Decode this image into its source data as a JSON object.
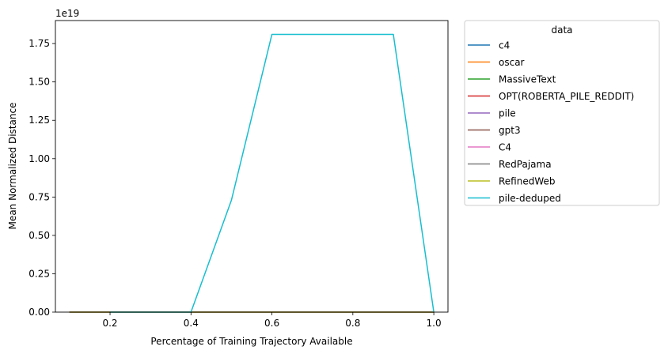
{
  "chart_data": {
    "type": "line",
    "title": "",
    "xlabel": "Percentage of Training Trajectory Available",
    "ylabel": "Mean Normalized Distance",
    "y_scale_label": "1e19",
    "xlim": [
      0.065,
      1.035
    ],
    "ylim": [
      0,
      1.9
    ],
    "x_ticks": [
      0.2,
      0.4,
      0.6,
      0.8,
      1.0
    ],
    "x_tick_labels": [
      "0.2",
      "0.4",
      "0.6",
      "0.8",
      "1.0"
    ],
    "y_ticks": [
      0,
      0.25,
      0.5,
      0.75,
      1.0,
      1.25,
      1.5,
      1.75
    ],
    "y_tick_labels": [
      "0.00",
      "0.25",
      "0.50",
      "0.75",
      "1.00",
      "1.25",
      "1.50",
      "1.75"
    ],
    "grid": false,
    "legend": {
      "title": "data",
      "placement": "outside-right"
    },
    "series": [
      {
        "name": "c4",
        "color": "#1f77b4",
        "x": [
          0.1,
          0.2,
          0.4,
          0.5,
          0.6,
          0.9,
          1.0
        ],
        "y": [
          0,
          0,
          0,
          0,
          0,
          0,
          0
        ]
      },
      {
        "name": "oscar",
        "color": "#ff7f0e",
        "x": [
          0.1,
          0.2,
          0.4,
          0.5,
          0.6,
          0.9,
          1.0
        ],
        "y": [
          0,
          0,
          0,
          0,
          0,
          0,
          0
        ]
      },
      {
        "name": "MassiveText",
        "color": "#2ca02c",
        "x": [
          0.1,
          0.2,
          0.4,
          0.5,
          0.6,
          0.9,
          1.0
        ],
        "y": [
          0,
          0,
          0,
          0,
          0,
          0,
          0
        ]
      },
      {
        "name": "OPT(ROBERTA_PILE_REDDIT)",
        "color": "#d62728",
        "x": [
          0.1,
          0.2,
          0.4,
          0.5,
          0.6,
          0.9,
          1.0
        ],
        "y": [
          0,
          0,
          0,
          0,
          0,
          0,
          0
        ]
      },
      {
        "name": "pile",
        "color": "#9467bd",
        "x": [
          0.1,
          0.2,
          0.4,
          0.5,
          0.6,
          0.9,
          1.0
        ],
        "y": [
          0,
          0,
          0,
          0,
          0,
          0,
          0
        ]
      },
      {
        "name": "gpt3",
        "color": "#8c564b",
        "x": [
          0.1,
          0.2,
          0.4,
          0.5,
          0.6,
          0.9,
          1.0
        ],
        "y": [
          0,
          0,
          0,
          0,
          0,
          0,
          0
        ]
      },
      {
        "name": "C4",
        "color": "#e377c2",
        "x": [
          0.1,
          0.2,
          0.4,
          0.5,
          0.6,
          0.9,
          1.0
        ],
        "y": [
          0,
          0,
          0,
          0,
          0,
          0,
          0
        ]
      },
      {
        "name": "RedPajama",
        "color": "#7f7f7f",
        "x": [
          0.1,
          0.2,
          0.4,
          0.5,
          0.6,
          0.9,
          1.0
        ],
        "y": [
          0,
          0,
          0,
          0,
          0,
          0,
          0
        ]
      },
      {
        "name": "RefinedWeb",
        "color": "#bcbd22",
        "x": [
          0.1,
          0.2,
          0.4,
          0.5,
          0.6,
          0.9,
          1.0
        ],
        "y": [
          0,
          0,
          0,
          0,
          0,
          0,
          0
        ]
      },
      {
        "name": "pile-deduped",
        "color": "#17becf",
        "x": [
          0.2,
          0.4,
          0.5,
          0.6,
          0.9,
          1.0
        ],
        "y": [
          0,
          0,
          0.73,
          1.81,
          1.81,
          0
        ]
      }
    ]
  }
}
